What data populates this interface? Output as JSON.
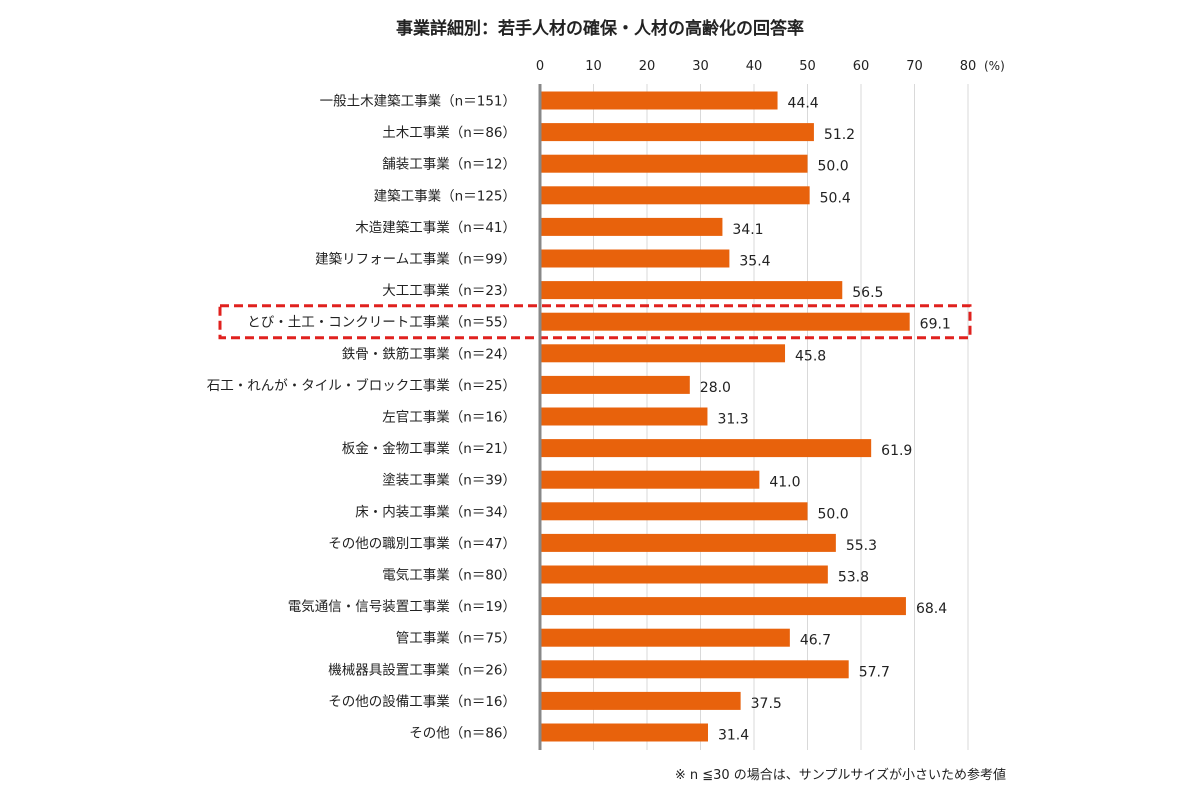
{
  "chart_data": {
    "type": "bar",
    "orientation": "horizontal",
    "title": "事業詳細別：若手人材の確保・人材の高齢化の回答率",
    "unit_label": "(%)",
    "xlim": [
      0,
      80
    ],
    "xticks": [
      "0",
      "10",
      "20",
      "30",
      "40",
      "50",
      "60",
      "70",
      "80"
    ],
    "grid": true,
    "bar_color": "#E8620C",
    "highlight_color": "#E0211E",
    "highlighted_category": "とび・土工・コンクリート工事業（n＝55）",
    "categories": [
      "一般土木建築工事業（n＝151）",
      "土木工事業（n＝86）",
      "舗装工事業（n＝12）",
      "建築工事業（n＝125）",
      "木造建築工事業（n＝41）",
      "建築リフォーム工事業（n＝99）",
      "大工工事業（n＝23）",
      "とび・土工・コンクリート工事業（n＝55）",
      "鉄骨・鉄筋工事業（n＝24）",
      "石工・れんが・タイル・ブロック工事業（n＝25）",
      "左官工事業（n＝16）",
      "板金・金物工事業（n＝21）",
      "塗装工事業（n＝39）",
      "床・内装工事業（n＝34）",
      "その他の職別工事業（n＝47）",
      "電気工事業（n＝80）",
      "電気通信・信号装置工事業（n＝19）",
      "管工事業（n＝75）",
      "機械器具設置工事業（n＝26）",
      "その他の設備工事業（n＝16）",
      "その他（n＝86）"
    ],
    "values": [
      44.4,
      51.2,
      50.0,
      50.4,
      34.1,
      35.4,
      56.5,
      69.1,
      45.8,
      28.0,
      31.3,
      61.9,
      41.0,
      50.0,
      55.3,
      53.8,
      68.4,
      46.7,
      57.7,
      37.5,
      31.4
    ],
    "value_labels": [
      "44.4",
      "51.2",
      "50.0",
      "50.4",
      "34.1",
      "35.4",
      "56.5",
      "69.1",
      "45.8",
      "28.0",
      "31.3",
      "61.9",
      "41.0",
      "50.0",
      "55.3",
      "53.8",
      "68.4",
      "46.7",
      "57.7",
      "37.5",
      "31.4"
    ],
    "footnote": "※ n ≦30 の場合は、サンプルサイズが小さいため参考値"
  }
}
